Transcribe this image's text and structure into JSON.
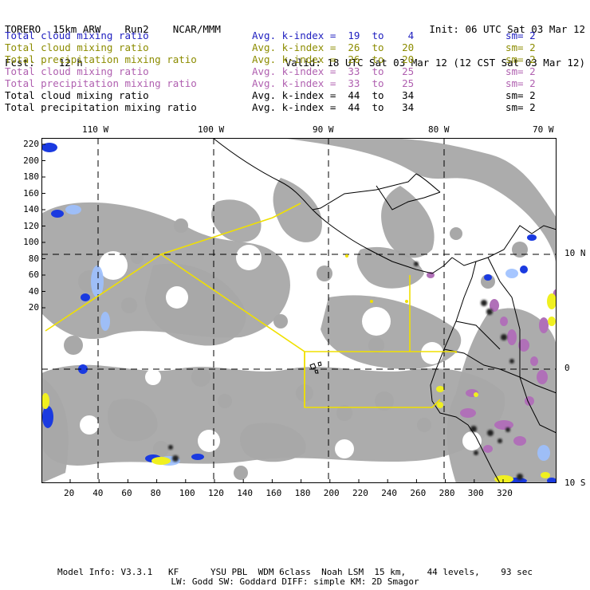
{
  "header": {
    "line1_left": "TORERO  15km ARW    Run2    NCAR/MMM",
    "line1_right": "Init: 06 UTC Sat 03 Mar 12",
    "line2_left": "Fcst:    12 h",
    "line2_right": "Valid: 18 UTC Sat 03 Mar 12 (12 CST Sat 03 Mar 12)"
  },
  "legend": [
    {
      "name": "Total cloud mixing ratio",
      "index": "Avg. k-index =  19  to    4",
      "sm": "sm= 2",
      "color": "#2020c0"
    },
    {
      "name": "Total cloud mixing ratio",
      "index": "Avg. k-index =  26  to   20",
      "sm": "sm= 2",
      "color": "#8c8c00"
    },
    {
      "name": "Total precipitation mixing ratio",
      "index": "Avg. k-index =  26  to   20",
      "sm": "sm= 2",
      "color": "#8c8c00"
    },
    {
      "name": "Total cloud mixing ratio",
      "index": "Avg. k-index =  33  to   25",
      "sm": "sm= 2",
      "color": "#b060b0"
    },
    {
      "name": "Total precipitation mixing ratio",
      "index": "Avg. k-index =  33  to   25",
      "sm": "sm= 2",
      "color": "#b060b0"
    },
    {
      "name": "Total cloud mixing ratio",
      "index": "Avg. k-index =  44  to   34",
      "sm": "sm= 2",
      "color": "#000000"
    },
    {
      "name": "Total precipitation mixing ratio",
      "index": "Avg. k-index =  44  to   34",
      "sm": "sm= 2",
      "color": "#000000"
    }
  ],
  "map": {
    "top_lon_labels": [
      "110 W",
      "100 W",
      "90 W",
      "80 W",
      "70 W"
    ],
    "right_lat_labels": [
      "10 N",
      "0",
      "10 S"
    ],
    "y_ticks": [
      "220",
      "200",
      "180",
      "160",
      "140",
      "120",
      "100",
      "80",
      "60",
      "40",
      "20"
    ],
    "x_ticks": [
      "20",
      "40",
      "60",
      "80",
      "100",
      "120",
      "140",
      "160",
      "180",
      "200",
      "220",
      "240",
      "260",
      "280",
      "300",
      "320"
    ],
    "colors": {
      "cloud_gray": "#a8a8a8",
      "blue": "#1a3ae0",
      "light_blue": "#9cc0ff",
      "purple": "#b070b8",
      "yellow": "#f0f020",
      "coast": "#000000",
      "flight_track": "#f0e000",
      "grid": "#000000"
    }
  },
  "footer": {
    "line1": "Model Info: V3.3.1   KF      YSU PBL  WDM 6class  Noah LSM  15 km,    44 levels,    93 sec",
    "line2": "LW: Godd SW: Goddard DIFF: simple KM: 2D Smagor"
  }
}
